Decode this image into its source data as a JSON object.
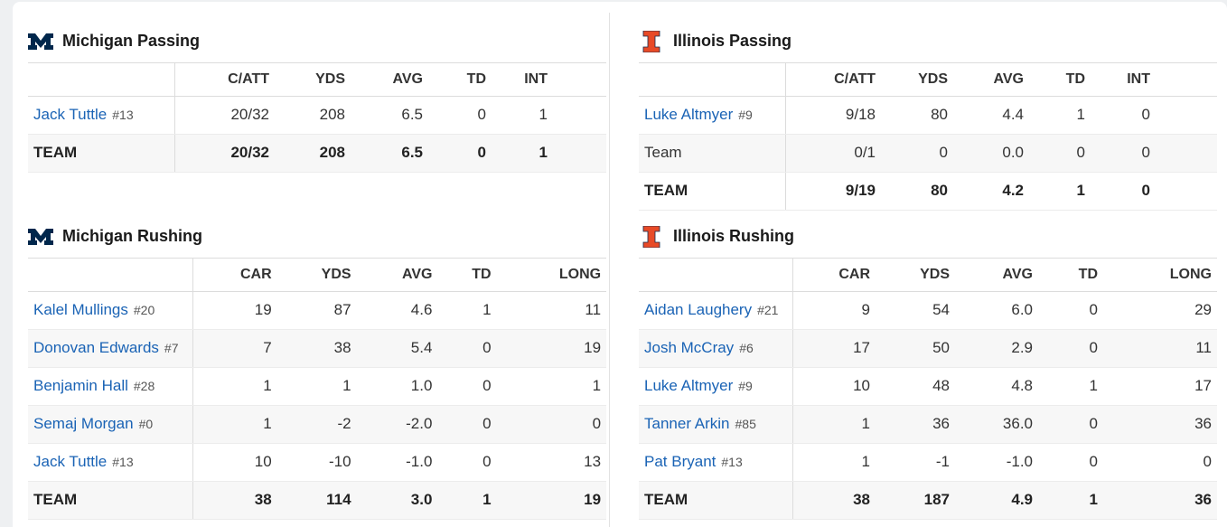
{
  "michigan": {
    "passing": {
      "title": "Michigan Passing",
      "headers": [
        "C/ATT",
        "YDS",
        "AVG",
        "TD",
        "INT"
      ],
      "rows": [
        {
          "name": "Jack Tuttle",
          "number": "#13",
          "values": [
            "20/32",
            "208",
            "6.5",
            "0",
            "1"
          ]
        }
      ],
      "team": {
        "name": "TEAM",
        "values": [
          "20/32",
          "208",
          "6.5",
          "0",
          "1"
        ]
      }
    },
    "rushing": {
      "title": "Michigan Rushing",
      "headers": [
        "CAR",
        "YDS",
        "AVG",
        "TD",
        "LONG"
      ],
      "rows": [
        {
          "name": "Kalel Mullings",
          "number": "#20",
          "values": [
            "19",
            "87",
            "4.6",
            "1",
            "11"
          ]
        },
        {
          "name": "Donovan Edwards",
          "number": "#7",
          "values": [
            "7",
            "38",
            "5.4",
            "0",
            "19"
          ]
        },
        {
          "name": "Benjamin Hall",
          "number": "#28",
          "values": [
            "1",
            "1",
            "1.0",
            "0",
            "1"
          ]
        },
        {
          "name": "Semaj Morgan",
          "number": "#0",
          "values": [
            "1",
            "-2",
            "-2.0",
            "0",
            "0"
          ]
        },
        {
          "name": "Jack Tuttle",
          "number": "#13",
          "values": [
            "10",
            "-10",
            "-1.0",
            "0",
            "13"
          ]
        }
      ],
      "team": {
        "name": "TEAM",
        "values": [
          "38",
          "114",
          "3.0",
          "1",
          "19"
        ]
      }
    }
  },
  "illinois": {
    "passing": {
      "title": "Illinois Passing",
      "headers": [
        "C/ATT",
        "YDS",
        "AVG",
        "TD",
        "INT"
      ],
      "rows": [
        {
          "name": "Luke Altmyer",
          "number": "#9",
          "values": [
            "9/18",
            "80",
            "4.4",
            "1",
            "0"
          ]
        },
        {
          "name": "Team",
          "number": "",
          "values": [
            "0/1",
            "0",
            "0.0",
            "0",
            "0"
          ]
        }
      ],
      "team": {
        "name": "TEAM",
        "values": [
          "9/19",
          "80",
          "4.2",
          "1",
          "0"
        ]
      }
    },
    "rushing": {
      "title": "Illinois Rushing",
      "headers": [
        "CAR",
        "YDS",
        "AVG",
        "TD",
        "LONG"
      ],
      "rows": [
        {
          "name": "Aidan Laughery",
          "number": "#21",
          "values": [
            "9",
            "54",
            "6.0",
            "0",
            "29"
          ]
        },
        {
          "name": "Josh McCray",
          "number": "#6",
          "values": [
            "17",
            "50",
            "2.9",
            "0",
            "11"
          ]
        },
        {
          "name": "Luke Altmyer",
          "number": "#9",
          "values": [
            "10",
            "48",
            "4.8",
            "1",
            "17"
          ]
        },
        {
          "name": "Tanner Arkin",
          "number": "#85",
          "values": [
            "1",
            "36",
            "36.0",
            "0",
            "36"
          ]
        },
        {
          "name": "Pat Bryant",
          "number": "#13",
          "values": [
            "1",
            "-1",
            "-1.0",
            "0",
            "0"
          ]
        }
      ],
      "team": {
        "name": "TEAM",
        "values": [
          "38",
          "187",
          "4.9",
          "1",
          "36"
        ]
      }
    }
  },
  "colors": {
    "michigan_navy": "#00274C",
    "michigan_maize": "#FFCB05",
    "illinois_orange": "#E84A27",
    "link_blue": "#1a63b5"
  },
  "icons": {
    "michigan": "michigan-block-m-logo",
    "illinois": "illinois-block-i-logo"
  }
}
